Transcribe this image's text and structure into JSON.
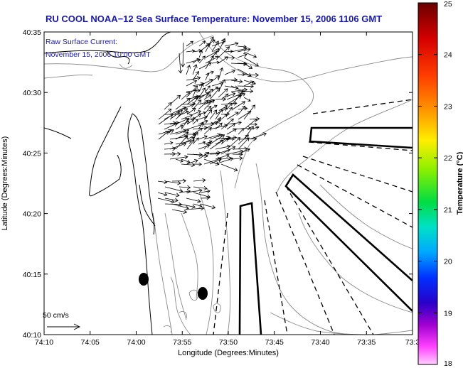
{
  "title": "RU COOL  NOAA−12  Sea Surface Temperature:  November 15, 2006 1106 GMT",
  "current_note": {
    "line1": "Raw Surface Current:",
    "line2": "November 15, 2006 10:00 GMT"
  },
  "axes": {
    "xlabel": "Longitude (Degrees:Minutes)",
    "ylabel": "Latitude (Degrees:Minutes)",
    "x_ticks": [
      "74:10",
      "74:05",
      "74:00",
      "73:55",
      "73:50",
      "73:45",
      "73:40",
      "73:35",
      "73:3"
    ],
    "y_ticks": [
      "40:35",
      "40:30",
      "40:25",
      "40:20",
      "40:15",
      "40:10"
    ]
  },
  "scale_label": "50 cm/s",
  "colorbar": {
    "label": "Temperature (°C)",
    "ticks": [
      "25",
      "24",
      "23",
      "22",
      "21",
      "20",
      "19",
      "18"
    ],
    "colors": [
      "#6b0000",
      "#d60000",
      "#ff3c00",
      "#ff9900",
      "#ffee00",
      "#8cf000",
      "#00dd44",
      "#00e0c8",
      "#00a8ff",
      "#0030ff",
      "#2a00c8",
      "#a000d0",
      "#ff40ff",
      "#ffd0ff"
    ]
  }
}
